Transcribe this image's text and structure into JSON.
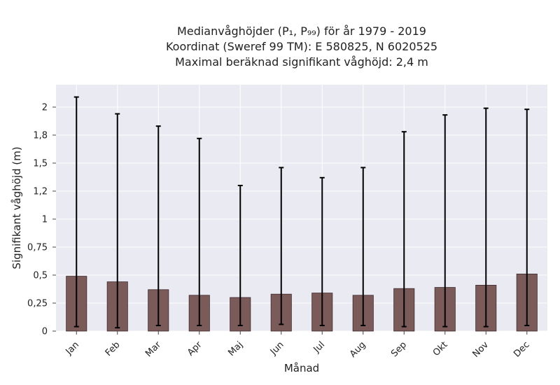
{
  "chart_data": {
    "type": "bar",
    "title_lines": [
      "Medianvåghöjder (P₁, P₉₉) för år 1979 - 2019",
      "Koordinat (Sweref 99 TM): E 580825, N 6020525",
      "Maximal beräknad signifikant våghöjd: 2,4 m"
    ],
    "xlabel": "Månad",
    "ylabel": "Signifikant våghöjd (m)",
    "categories": [
      "Jan",
      "Feb",
      "Mar",
      "Apr",
      "Maj",
      "Jun",
      "Jul",
      "Aug",
      "Sep",
      "Okt",
      "Nov",
      "Dec"
    ],
    "values": [
      0.49,
      0.44,
      0.37,
      0.32,
      0.3,
      0.33,
      0.34,
      0.32,
      0.38,
      0.39,
      0.41,
      0.51
    ],
    "p1": [
      0.04,
      0.03,
      0.05,
      0.05,
      0.05,
      0.06,
      0.05,
      0.05,
      0.04,
      0.04,
      0.04,
      0.05
    ],
    "p99": [
      2.09,
      1.94,
      1.83,
      1.72,
      1.3,
      1.46,
      1.37,
      1.46,
      1.78,
      1.93,
      1.99,
      1.98
    ],
    "ylim": [
      0,
      2.2
    ],
    "yticks": [
      0,
      0.25,
      0.5,
      0.75,
      1,
      1.25,
      1.5,
      1.75,
      2
    ],
    "ytick_labels": [
      "0",
      "0,25",
      "0,5",
      "0,75",
      "1",
      "1,2",
      "1,5",
      "1,8",
      "2"
    ],
    "grid": true,
    "bar_color": "#7b5a5a",
    "errorbar_color": "#000000",
    "background_color": "#eaeaf2"
  }
}
